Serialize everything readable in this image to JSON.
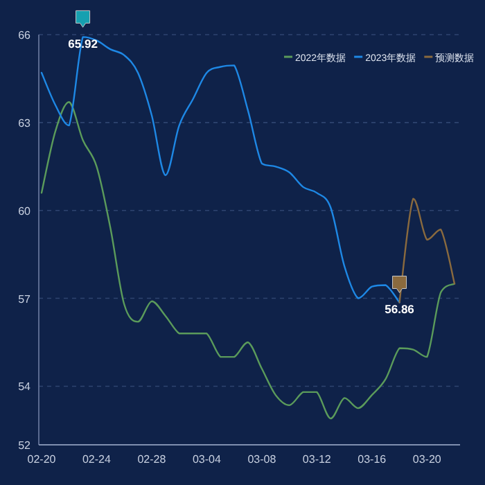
{
  "chart_data": {
    "type": "line",
    "categories": [
      "02-20",
      null,
      null,
      null,
      "02-24",
      null,
      null,
      null,
      "02-28",
      null,
      null,
      null,
      "03-04",
      null,
      null,
      null,
      "03-08",
      null,
      null,
      null,
      "03-12",
      null,
      null,
      null,
      "03-16",
      null,
      null,
      null,
      "03-20",
      null,
      null
    ],
    "ylim": [
      52,
      66
    ],
    "yticks": [
      52,
      54,
      57,
      60,
      63,
      66
    ],
    "grid": "y",
    "legend": "top right",
    "marker": "none",
    "line_style": "solid",
    "series": [
      {
        "name": "2022年数据",
        "color": "#5b9b5b",
        "values": [
          60.6,
          62.7,
          63.7,
          62.4,
          61.5,
          59.4,
          56.8,
          56.2,
          56.9,
          56.4,
          55.8,
          55.8,
          55.8,
          55.0,
          55.0,
          55.5,
          54.6,
          53.7,
          53.35,
          53.8,
          53.8,
          52.9,
          53.6,
          53.25,
          53.7,
          54.25,
          55.3,
          55.25,
          55.0,
          57.2,
          57.5
        ]
      },
      {
        "name": "2023年数据",
        "color": "#1e88e5",
        "values": [
          64.7,
          63.6,
          62.9,
          65.92,
          65.8,
          65.5,
          65.3,
          64.7,
          63.25,
          61.2,
          62.9,
          63.8,
          64.7,
          64.9,
          64.95,
          63.4,
          61.6,
          61.5,
          61.3,
          60.8,
          60.6,
          60.1,
          58.1,
          57.0,
          57.4,
          57.45,
          56.86,
          null,
          null,
          null,
          null
        ]
      },
      {
        "name": "预测数据",
        "color": "#8a6a3e",
        "values": [
          null,
          null,
          null,
          null,
          null,
          null,
          null,
          null,
          null,
          null,
          null,
          null,
          null,
          null,
          null,
          null,
          null,
          null,
          null,
          null,
          null,
          null,
          null,
          null,
          null,
          null,
          56.86,
          60.4,
          59.0,
          59.35,
          57.5
        ]
      }
    ],
    "annotations": [
      {
        "text": "65.92",
        "y": 65.92
      },
      {
        "text": "56.86",
        "y": 56.86
      }
    ]
  }
}
